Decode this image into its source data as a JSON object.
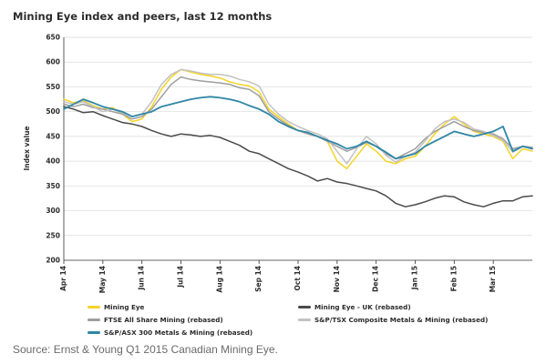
{
  "title": "Mining Eye index and peers, last 12 months",
  "source": "Source: Ernst & Young Q1 2015 Canadian Mining Eye.",
  "chart_data": {
    "type": "line",
    "title": "Mining Eye index and peers, last 12 months",
    "xlabel": "",
    "ylabel": "Index value",
    "ylim": [
      200,
      650
    ],
    "yticks": [
      200,
      250,
      300,
      350,
      400,
      450,
      500,
      550,
      600,
      650
    ],
    "xlim": [
      0,
      12
    ],
    "xticks": [
      {
        "label": "Apr 14",
        "x": 0
      },
      {
        "label": "May 14",
        "x": 1
      },
      {
        "label": "Jun 14",
        "x": 2
      },
      {
        "label": "Jul 14",
        "x": 3
      },
      {
        "label": "Aug 14",
        "x": 4
      },
      {
        "label": "Sep 14",
        "x": 5
      },
      {
        "label": "Oct 14",
        "x": 6
      },
      {
        "label": "Nov 14",
        "x": 7
      },
      {
        "label": "Dec 14",
        "x": 8
      },
      {
        "label": "Jan 15",
        "x": 9
      },
      {
        "label": "Feb 15",
        "x": 10
      },
      {
        "label": "Mar 15",
        "x": 11
      }
    ],
    "grid": "horizontal",
    "legend": "bottom",
    "series": [
      {
        "name": "Mining Eye",
        "color": "#f5d327",
        "width": 1.5,
        "x": [
          0,
          0.25,
          0.5,
          0.75,
          1,
          1.25,
          1.5,
          1.75,
          2,
          2.25,
          2.5,
          2.75,
          3,
          3.25,
          3.5,
          3.75,
          4,
          4.25,
          4.5,
          4.75,
          5,
          5.25,
          5.5,
          5.75,
          6,
          6.25,
          6.5,
          6.75,
          7,
          7.25,
          7.5,
          7.75,
          8,
          8.25,
          8.5,
          8.75,
          9,
          9.25,
          9.5,
          9.75,
          10,
          10.25,
          10.5,
          10.75,
          11,
          11.25,
          11.5,
          11.75,
          12
        ],
        "y": [
          525,
          518,
          522,
          512,
          505,
          508,
          495,
          480,
          485,
          510,
          545,
          570,
          585,
          580,
          575,
          572,
          568,
          560,
          555,
          552,
          540,
          505,
          490,
          475,
          462,
          455,
          450,
          440,
          400,
          385,
          410,
          435,
          420,
          400,
          395,
          405,
          410,
          430,
          455,
          475,
          490,
          475,
          460,
          455,
          450,
          440,
          405,
          425,
          420
        ]
      },
      {
        "name": "Mining Eye - UK (rebased)",
        "color": "#4a4a4a",
        "width": 1.5,
        "x": [
          0,
          0.25,
          0.5,
          0.75,
          1,
          1.25,
          1.5,
          1.75,
          2,
          2.25,
          2.5,
          2.75,
          3,
          3.25,
          3.5,
          3.75,
          4,
          4.25,
          4.5,
          4.75,
          5,
          5.25,
          5.5,
          5.75,
          6,
          6.25,
          6.5,
          6.75,
          7,
          7.25,
          7.5,
          7.75,
          8,
          8.25,
          8.5,
          8.75,
          9,
          9.25,
          9.5,
          9.75,
          10,
          10.25,
          10.5,
          10.75,
          11,
          11.25,
          11.5,
          11.75,
          12
        ],
        "y": [
          510,
          505,
          498,
          500,
          492,
          485,
          478,
          475,
          470,
          462,
          455,
          450,
          455,
          453,
          450,
          452,
          448,
          440,
          432,
          420,
          415,
          405,
          395,
          385,
          378,
          370,
          360,
          365,
          358,
          355,
          350,
          345,
          340,
          330,
          315,
          308,
          312,
          318,
          325,
          330,
          328,
          318,
          312,
          308,
          315,
          320,
          320,
          328,
          330
        ]
      },
      {
        "name": "FTSE All Share Mining (rebased)",
        "color": "#9e9e9e",
        "width": 1.5,
        "x": [
          0,
          0.25,
          0.5,
          0.75,
          1,
          1.25,
          1.5,
          1.75,
          2,
          2.25,
          2.5,
          2.75,
          3,
          3.25,
          3.5,
          3.75,
          4,
          4.25,
          4.5,
          4.75,
          5,
          5.25,
          5.5,
          5.75,
          6,
          6.25,
          6.5,
          6.75,
          7,
          7.25,
          7.5,
          7.75,
          8,
          8.25,
          8.5,
          8.75,
          9,
          9.25,
          9.5,
          9.75,
          10,
          10.25,
          10.5,
          10.75,
          11,
          11.25,
          11.5,
          11.75,
          12
        ],
        "y": [
          515,
          510,
          515,
          508,
          505,
          500,
          495,
          485,
          490,
          505,
          530,
          555,
          570,
          565,
          562,
          560,
          558,
          555,
          548,
          545,
          532,
          500,
          485,
          472,
          462,
          455,
          450,
          440,
          430,
          420,
          428,
          438,
          430,
          415,
          405,
          415,
          425,
          445,
          460,
          470,
          480,
          470,
          462,
          458,
          455,
          445,
          425,
          430,
          428
        ]
      },
      {
        "name": "S&P/TSX Composite Metals & Mining (rebased)",
        "color": "#c2c2c2",
        "width": 1.5,
        "x": [
          0,
          0.25,
          0.5,
          0.75,
          1,
          1.25,
          1.5,
          1.75,
          2,
          2.25,
          2.5,
          2.75,
          3,
          3.25,
          3.5,
          3.75,
          4,
          4.25,
          4.5,
          4.75,
          5,
          5.25,
          5.5,
          5.75,
          6,
          6.25,
          6.5,
          6.75,
          7,
          7.25,
          7.5,
          7.75,
          8,
          8.25,
          8.5,
          8.75,
          9,
          9.25,
          9.5,
          9.75,
          10,
          10.25,
          10.5,
          10.75,
          11,
          11.25,
          11.5,
          11.75,
          12
        ],
        "y": [
          520,
          515,
          520,
          510,
          500,
          505,
          498,
          490,
          495,
          520,
          555,
          575,
          585,
          582,
          578,
          575,
          575,
          572,
          565,
          560,
          552,
          515,
          495,
          480,
          470,
          462,
          455,
          445,
          420,
          395,
          425,
          450,
          435,
          412,
          398,
          410,
          418,
          440,
          465,
          480,
          485,
          478,
          465,
          460,
          452,
          442,
          418,
          430,
          425
        ]
      },
      {
        "name": "S&P/ASX 300 Metals & Mining (rebased)",
        "color": "#2f86a6",
        "width": 1.8,
        "x": [
          0,
          0.25,
          0.5,
          0.75,
          1,
          1.25,
          1.5,
          1.75,
          2,
          2.25,
          2.5,
          2.75,
          3,
          3.25,
          3.5,
          3.75,
          4,
          4.25,
          4.5,
          4.75,
          5,
          5.25,
          5.5,
          5.75,
          6,
          6.25,
          6.5,
          6.75,
          7,
          7.25,
          7.5,
          7.75,
          8,
          8.25,
          8.5,
          8.75,
          9,
          9.25,
          9.5,
          9.75,
          10,
          10.25,
          10.5,
          10.75,
          11,
          11.25,
          11.5,
          11.75,
          12
        ],
        "y": [
          505,
          515,
          525,
          518,
          510,
          505,
          500,
          490,
          495,
          500,
          510,
          515,
          520,
          525,
          528,
          530,
          528,
          525,
          520,
          512,
          505,
          495,
          480,
          470,
          462,
          458,
          450,
          442,
          435,
          425,
          430,
          440,
          430,
          418,
          405,
          410,
          415,
          430,
          440,
          450,
          460,
          455,
          450,
          455,
          460,
          470,
          420,
          430,
          425
        ]
      }
    ]
  }
}
